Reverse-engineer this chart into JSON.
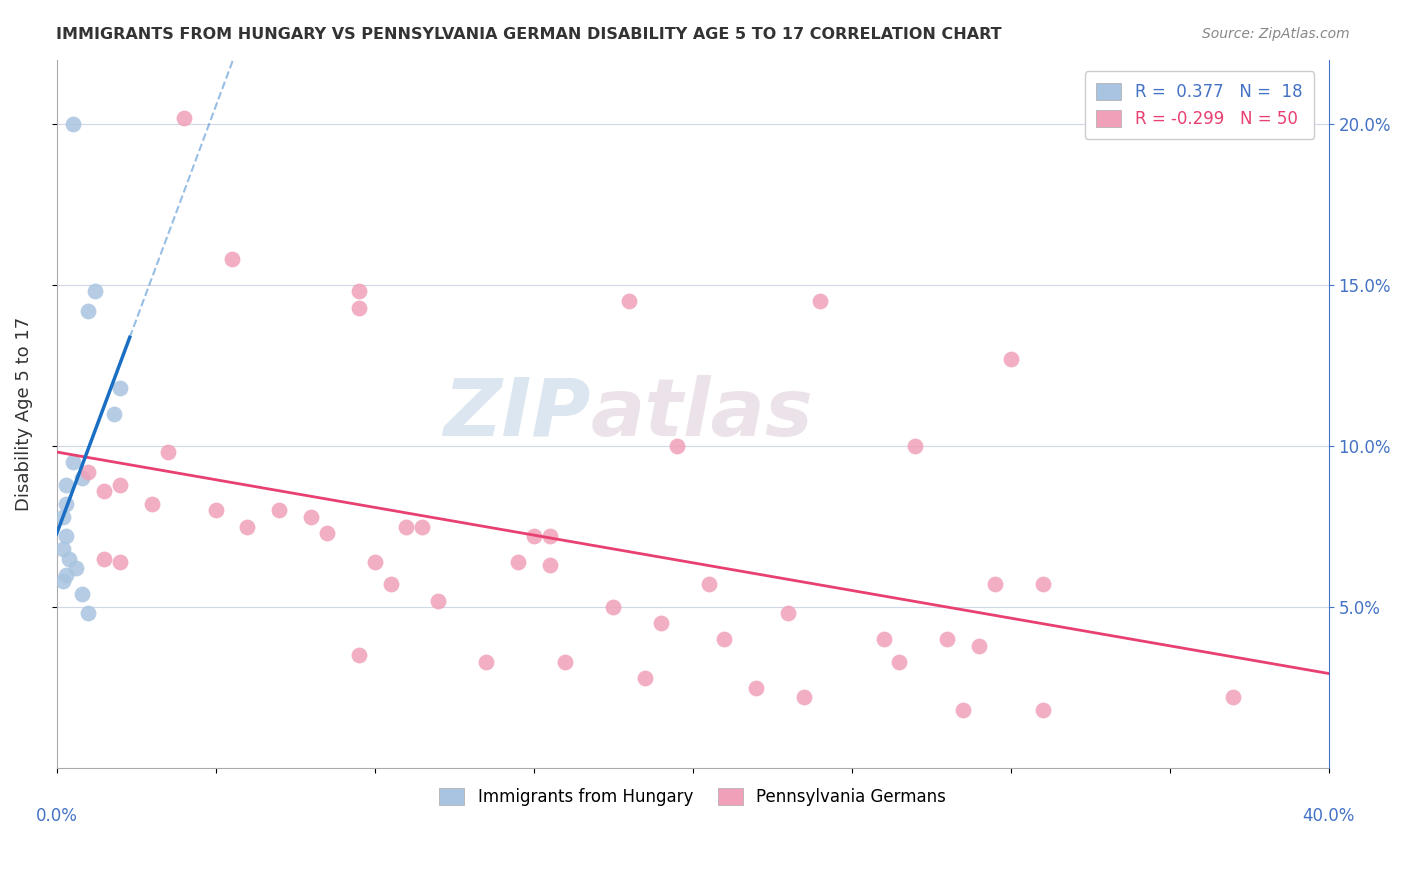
{
  "title": "IMMIGRANTS FROM HUNGARY VS PENNSYLVANIA GERMAN DISABILITY AGE 5 TO 17 CORRELATION CHART",
  "source": "Source: ZipAtlas.com",
  "ylabel": "Disability Age 5 to 17",
  "yaxis_ticks": [
    0.05,
    0.1,
    0.15,
    0.2
  ],
  "yaxis_labels": [
    "5.0%",
    "10.0%",
    "15.0%",
    "20.0%"
  ],
  "xlim": [
    0.0,
    0.4
  ],
  "ylim": [
    0.0,
    0.22
  ],
  "hungary_color": "#a8c4e0",
  "penn_color": "#f0a0b8",
  "trendline_hungary_color": "#1a6fc4",
  "trendline_penn_color": "#e84070",
  "watermark_zip": "ZIP",
  "watermark_atlas": "atlas",
  "hungary_points": [
    [
      0.005,
      0.2
    ],
    [
      0.012,
      0.148
    ],
    [
      0.01,
      0.142
    ],
    [
      0.02,
      0.118
    ],
    [
      0.018,
      0.11
    ],
    [
      0.005,
      0.095
    ],
    [
      0.008,
      0.09
    ],
    [
      0.003,
      0.088
    ],
    [
      0.003,
      0.082
    ],
    [
      0.002,
      0.078
    ],
    [
      0.003,
      0.072
    ],
    [
      0.002,
      0.068
    ],
    [
      0.004,
      0.065
    ],
    [
      0.006,
      0.062
    ],
    [
      0.003,
      0.06
    ],
    [
      0.002,
      0.058
    ],
    [
      0.008,
      0.054
    ],
    [
      0.01,
      0.048
    ]
  ],
  "penn_points": [
    [
      0.04,
      0.202
    ],
    [
      0.055,
      0.158
    ],
    [
      0.095,
      0.148
    ],
    [
      0.18,
      0.145
    ],
    [
      0.24,
      0.145
    ],
    [
      0.095,
      0.143
    ],
    [
      0.3,
      0.127
    ],
    [
      0.035,
      0.098
    ],
    [
      0.195,
      0.1
    ],
    [
      0.27,
      0.1
    ],
    [
      0.01,
      0.092
    ],
    [
      0.02,
      0.088
    ],
    [
      0.015,
      0.086
    ],
    [
      0.03,
      0.082
    ],
    [
      0.05,
      0.08
    ],
    [
      0.07,
      0.08
    ],
    [
      0.08,
      0.078
    ],
    [
      0.06,
      0.075
    ],
    [
      0.11,
      0.075
    ],
    [
      0.115,
      0.075
    ],
    [
      0.085,
      0.073
    ],
    [
      0.15,
      0.072
    ],
    [
      0.155,
      0.072
    ],
    [
      0.015,
      0.065
    ],
    [
      0.02,
      0.064
    ],
    [
      0.1,
      0.064
    ],
    [
      0.145,
      0.064
    ],
    [
      0.155,
      0.063
    ],
    [
      0.105,
      0.057
    ],
    [
      0.205,
      0.057
    ],
    [
      0.295,
      0.057
    ],
    [
      0.31,
      0.057
    ],
    [
      0.12,
      0.052
    ],
    [
      0.175,
      0.05
    ],
    [
      0.23,
      0.048
    ],
    [
      0.19,
      0.045
    ],
    [
      0.21,
      0.04
    ],
    [
      0.26,
      0.04
    ],
    [
      0.28,
      0.04
    ],
    [
      0.29,
      0.038
    ],
    [
      0.095,
      0.035
    ],
    [
      0.135,
      0.033
    ],
    [
      0.16,
      0.033
    ],
    [
      0.265,
      0.033
    ],
    [
      0.185,
      0.028
    ],
    [
      0.22,
      0.025
    ],
    [
      0.235,
      0.022
    ],
    [
      0.37,
      0.022
    ],
    [
      0.285,
      0.018
    ],
    [
      0.31,
      0.018
    ]
  ]
}
